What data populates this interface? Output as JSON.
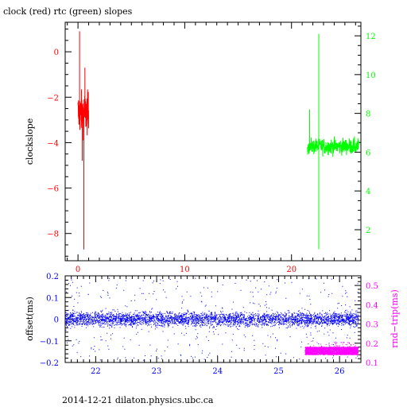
{
  "chart_data": [
    {
      "type": "line",
      "title": "clock (red) rtc (green) slopes",
      "ylabel": "clockslope",
      "xlim": [
        -1.2,
        26.5
      ],
      "ylim": [
        -9.2,
        1.3
      ],
      "xticks": [
        0,
        10,
        20
      ],
      "xtick_labels": [
        "0",
        "10",
        "20"
      ],
      "yticks": [
        0,
        -2,
        -4,
        -6,
        -8
      ],
      "ytick_labels": [
        "0",
        "−2",
        "−4",
        "−6",
        "−8"
      ],
      "y2lim": [
        0.4,
        12.7
      ],
      "y2ticks": [
        2,
        4,
        6,
        8,
        10,
        12
      ],
      "y2tick_labels": [
        "2",
        "4",
        "6",
        "8",
        "10",
        "12"
      ],
      "series": [
        {
          "color": "#ff0000",
          "axis": "left",
          "x_range": [
            0.0,
            1.0
          ],
          "base": -2.7,
          "band": [
            -4.3,
            -0.8
          ],
          "spikes": [
            [
              0.15,
              0.9
            ],
            [
              0.55,
              -8.7
            ],
            [
              0.4,
              -4.8
            ],
            [
              0.65,
              -0.7
            ]
          ]
        },
        {
          "color": "#00ff00",
          "axis": "right",
          "x_range": [
            21.5,
            26.3
          ],
          "base": 6.3,
          "band": [
            5.6,
            7.2
          ],
          "spikes": [
            [
              21.7,
              8.2
            ],
            [
              22.55,
              12.1
            ],
            [
              22.55,
              1.0
            ]
          ]
        }
      ]
    },
    {
      "type": "scatter",
      "ylabel": "offset(ms)",
      "y2label": "rnd−trip(ms)",
      "xlim": [
        21.5,
        26.35
      ],
      "ylim": [
        -0.2,
        0.2
      ],
      "xticks": [
        22,
        23,
        24,
        25,
        26
      ],
      "xtick_labels": [
        "22",
        "23",
        "24",
        "25",
        "26"
      ],
      "yticks": [
        0.2,
        0.1,
        0,
        -0.1,
        -0.2
      ],
      "ytick_labels": [
        "0.2",
        "0.1",
        "0",
        "−0.1",
        "−0.2"
      ],
      "y2lim": [
        0.1,
        0.55
      ],
      "y2ticks": [
        0.1,
        0.2,
        0.3,
        0.4,
        0.5
      ],
      "y2tick_labels": [
        "0.1",
        "0.2",
        "0.3",
        "0.4",
        "0.5"
      ],
      "series": [
        {
          "color": "#0000ff",
          "axis": "left",
          "x_range": [
            21.5,
            26.3
          ],
          "center": 0.0,
          "dense_band": [
            -0.03,
            0.03
          ],
          "outlier_range": [
            -0.19,
            0.19
          ]
        },
        {
          "color": "#ff00ff",
          "axis": "right",
          "x_range": [
            25.43,
            26.3
          ],
          "band": [
            0.14,
            0.18
          ]
        }
      ]
    }
  ],
  "footer": "2014-12-21 dilaton.physics.ubc.ca"
}
